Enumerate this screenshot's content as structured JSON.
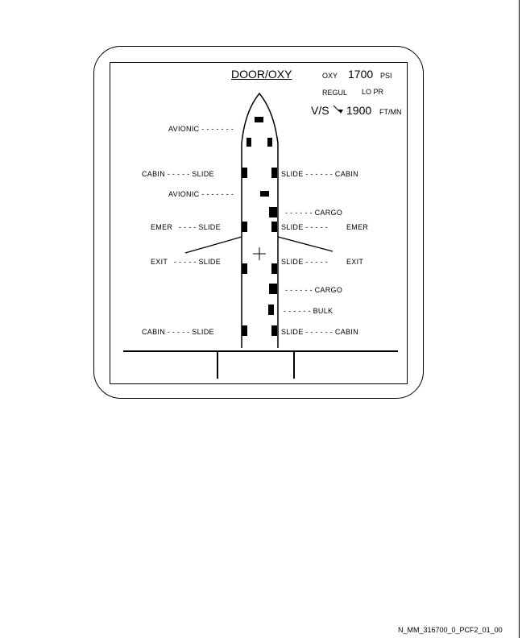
{
  "title": "DOOR/OXY",
  "oxy": {
    "label": "OXY",
    "value": "1700",
    "unit": "PSI"
  },
  "regul": {
    "label": "REGUL",
    "value": "LO PR"
  },
  "vs": {
    "label": "V/S",
    "value": "1900",
    "unit": "FT/MN"
  },
  "labels": {
    "avionic_upper": "AVIONIC - - - - - - -",
    "cabin_fwd_left": "CABIN - - - - - SLIDE",
    "slide_cabin_fwd_right": "SLIDE - - - - - - CABIN",
    "avionic_lower": "AVIONIC - - - - - - -",
    "cargo_fwd": "- - - - - - CARGO",
    "emer_left": "EMER",
    "emer_slide_left": "- - - - SLIDE",
    "slide_emer_right": "SLIDE - - - - -",
    "emer_right": "EMER",
    "exit_left": "EXIT",
    "exit_slide_left": "- - - - - SLIDE",
    "slide_exit_right": "SLIDE - - - - -",
    "exit_right": "EXIT",
    "cargo_aft": "- - - - - - CARGO",
    "bulk": "- - - - - - BULK",
    "cabin_aft_left": "CABIN - - - - - SLIDE",
    "slide_cabin_aft_right": "SLIDE - - - - - - CABIN"
  },
  "footer": "N_MM_316700_0_PCF2_01_00"
}
